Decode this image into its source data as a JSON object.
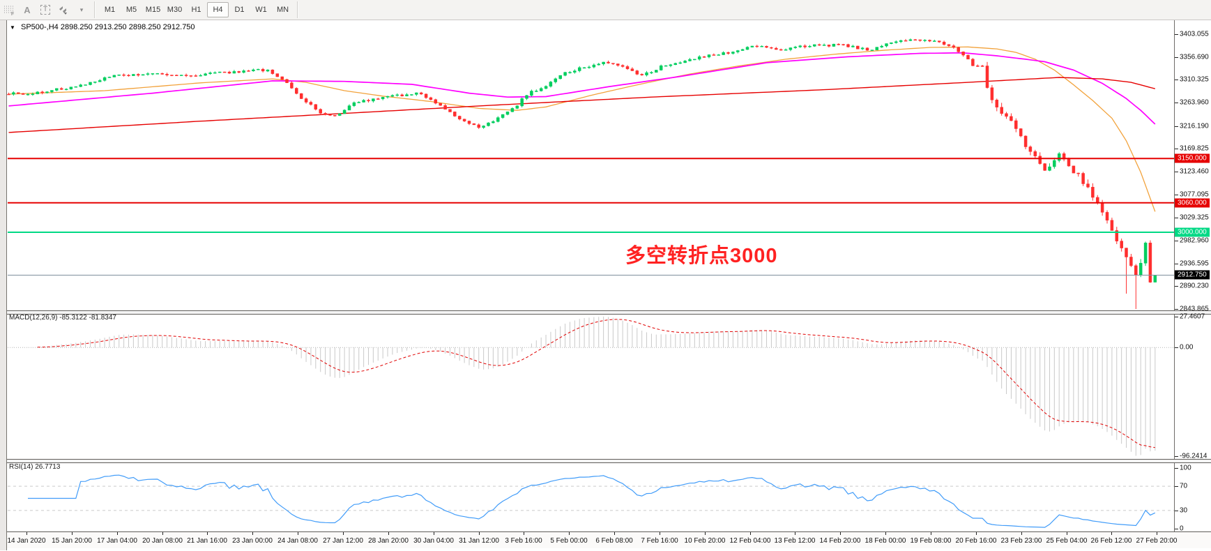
{
  "toolbar": {
    "icons": [
      {
        "name": "grid-f-icon"
      },
      {
        "name": "letter-a-icon"
      },
      {
        "name": "text-select-icon",
        "glyph": "T"
      },
      {
        "name": "cycles-icon"
      },
      {
        "name": "dropdown-caret-icon",
        "glyph": "▾"
      }
    ],
    "timeframes": [
      "M1",
      "M5",
      "M15",
      "M30",
      "H1",
      "H4",
      "D1",
      "W1",
      "MN"
    ],
    "active_timeframe": "H4"
  },
  "chart": {
    "title_symbol": "SP500-,H4",
    "title_ohlc": "2898.250 2913.250 2898.250 2912.750",
    "dropdown_glyph": "▼",
    "annotation": "多空转折点3000"
  },
  "chart_data": {
    "type": "candlestick",
    "symbol": "SP500-",
    "timeframe": "H4",
    "last_bar": {
      "open": 2898.25,
      "high": 2913.25,
      "low": 2898.25,
      "close": 2912.75
    },
    "price_axis": {
      "range_top": 3431.4,
      "range_bottom": 2841.0,
      "ticks": [
        3403.055,
        3356.69,
        3310.325,
        3263.96,
        3216.19,
        3169.825,
        3123.46,
        3077.095,
        3029.325,
        2982.96,
        2936.595,
        2890.23,
        2843.865
      ]
    },
    "hlines": [
      {
        "value": 3150.0,
        "label": "3150.000",
        "color": "#e60000",
        "width": 2
      },
      {
        "value": 3060.0,
        "label": "3060.000",
        "color": "#e60000",
        "width": 2
      },
      {
        "value": 3000.0,
        "label": "3000.000",
        "color": "#00d985",
        "width": 2
      }
    ],
    "current_price": {
      "value": 2912.75,
      "label": "2912.750",
      "line_color": "#7e8e9c",
      "badge_bg": "#000000"
    },
    "candles": {
      "count": 240,
      "up_color": "#00ce5e",
      "down_color": "#ff2e2e",
      "close_anchors": [
        [
          0,
          3283
        ],
        [
          4,
          3280
        ],
        [
          7,
          3286
        ],
        [
          14,
          3296
        ],
        [
          22,
          3318
        ],
        [
          29,
          3322
        ],
        [
          36,
          3318
        ],
        [
          43,
          3323
        ],
        [
          50,
          3328
        ],
        [
          54,
          3331
        ],
        [
          58,
          3302
        ],
        [
          61,
          3272
        ],
        [
          65,
          3243
        ],
        [
          68,
          3236
        ],
        [
          72,
          3264
        ],
        [
          79,
          3276
        ],
        [
          86,
          3283
        ],
        [
          90,
          3256
        ],
        [
          94,
          3230
        ],
        [
          98,
          3214
        ],
        [
          101,
          3227
        ],
        [
          106,
          3259
        ],
        [
          108,
          3280
        ],
        [
          113,
          3304
        ],
        [
          115,
          3320
        ],
        [
          120,
          3336
        ],
        [
          124,
          3347
        ],
        [
          130,
          3330
        ],
        [
          132,
          3318
        ],
        [
          137,
          3341
        ],
        [
          144,
          3356
        ],
        [
          151,
          3368
        ],
        [
          156,
          3379
        ],
        [
          161,
          3372
        ],
        [
          166,
          3379
        ],
        [
          173,
          3381
        ],
        [
          180,
          3371
        ],
        [
          184,
          3386
        ],
        [
          188,
          3392
        ],
        [
          192,
          3390
        ],
        [
          194,
          3385
        ],
        [
          196,
          3380
        ],
        [
          199,
          3362
        ],
        [
          201,
          3341
        ],
        [
          203,
          3338
        ],
        [
          204,
          3290
        ],
        [
          206,
          3256
        ],
        [
          209,
          3225
        ],
        [
          212,
          3178
        ],
        [
          214,
          3150
        ],
        [
          216,
          3128
        ],
        [
          218,
          3142
        ],
        [
          219,
          3160
        ],
        [
          220,
          3146
        ],
        [
          222,
          3120
        ],
        [
          223,
          3116
        ],
        [
          224,
          3100
        ],
        [
          227,
          3062
        ],
        [
          229,
          3020
        ],
        [
          231,
          2985
        ],
        [
          233,
          2948
        ],
        [
          235,
          2915
        ],
        [
          236,
          2938
        ],
        [
          237,
          2978
        ],
        [
          238,
          2898.25
        ],
        [
          239,
          2912.75
        ]
      ]
    },
    "moving_averages": [
      {
        "name": "fast-ma",
        "color": "#f2a23b",
        "width": 1.3,
        "points": [
          [
            0,
            3281
          ],
          [
            20,
            3288
          ],
          [
            40,
            3304
          ],
          [
            55,
            3312
          ],
          [
            62,
            3305
          ],
          [
            70,
            3288
          ],
          [
            78,
            3277
          ],
          [
            88,
            3266
          ],
          [
            98,
            3252
          ],
          [
            106,
            3248
          ],
          [
            112,
            3255
          ],
          [
            122,
            3280
          ],
          [
            132,
            3302
          ],
          [
            142,
            3322
          ],
          [
            152,
            3338
          ],
          [
            162,
            3352
          ],
          [
            172,
            3362
          ],
          [
            182,
            3370
          ],
          [
            192,
            3376
          ],
          [
            200,
            3377
          ],
          [
            206,
            3373
          ],
          [
            210,
            3366
          ],
          [
            214,
            3352
          ],
          [
            218,
            3330
          ],
          [
            222,
            3300
          ],
          [
            226,
            3268
          ],
          [
            230,
            3232
          ],
          [
            233,
            3186
          ],
          [
            236,
            3122
          ],
          [
            239,
            3042
          ]
        ]
      },
      {
        "name": "medium-ma",
        "color": "#ff00ff",
        "width": 1.7,
        "points": [
          [
            0,
            3257
          ],
          [
            30,
            3283
          ],
          [
            55,
            3308
          ],
          [
            70,
            3307
          ],
          [
            84,
            3301
          ],
          [
            96,
            3283
          ],
          [
            104,
            3275
          ],
          [
            112,
            3276
          ],
          [
            125,
            3296
          ],
          [
            140,
            3317
          ],
          [
            158,
            3345
          ],
          [
            175,
            3357
          ],
          [
            190,
            3364
          ],
          [
            199,
            3365
          ],
          [
            206,
            3359
          ],
          [
            212,
            3352
          ],
          [
            216,
            3347
          ],
          [
            222,
            3330
          ],
          [
            228,
            3303
          ],
          [
            233,
            3272
          ],
          [
            236,
            3248
          ],
          [
            239,
            3220
          ]
        ]
      },
      {
        "name": "slow-ma",
        "color": "#e60000",
        "width": 1.4,
        "points": [
          [
            0,
            3203
          ],
          [
            40,
            3226
          ],
          [
            74,
            3244
          ],
          [
            100,
            3258
          ],
          [
            134,
            3275
          ],
          [
            170,
            3290
          ],
          [
            200,
            3305
          ],
          [
            219,
            3315
          ],
          [
            228,
            3312
          ],
          [
            234,
            3305
          ],
          [
            239,
            3292
          ]
        ]
      }
    ],
    "macd": {
      "label": "MACD(12,26,9) -85.3122 -81.8347",
      "params": [
        12,
        26,
        9
      ],
      "main_value": -85.3122,
      "signal_value": -81.8347,
      "axis": [
        {
          "v": 27.4607,
          "label": "27.4607"
        },
        {
          "v": 0,
          "label": "0.00"
        },
        {
          "v": -96.2414,
          "label": "-96.2414"
        }
      ],
      "range_top": 30.5,
      "range_bottom": -99.0,
      "hist_color": "#c9c9c9",
      "signal_color": "#e00000"
    },
    "rsi": {
      "label": "RSI(14) 26.7713",
      "period": 14,
      "value": 26.7713,
      "axis": [
        {
          "v": 100,
          "label": "100"
        },
        {
          "v": 70,
          "label": "70"
        },
        {
          "v": 30,
          "label": "30"
        },
        {
          "v": 0,
          "label": "0"
        }
      ],
      "levels": [
        70,
        30
      ],
      "range_top": 110.3,
      "range_bottom": -4.6,
      "line_color": "#419cf9",
      "level_color": "#c9c9c9"
    },
    "time_axis": [
      "14 Jan 2020",
      "15 Jan 20:00",
      "17 Jan 04:00",
      "20 Jan 08:00",
      "21 Jan 16:00",
      "23 Jan 00:00",
      "24 Jan 08:00",
      "27 Jan 12:00",
      "28 Jan 20:00",
      "30 Jan 04:00",
      "31 Jan 12:00",
      "3 Feb 16:00",
      "5 Feb 00:00",
      "6 Feb 08:00",
      "7 Feb 16:00",
      "10 Feb 20:00",
      "12 Feb 04:00",
      "13 Feb 12:00",
      "14 Feb 20:00",
      "18 Feb 00:00",
      "19 Feb 08:00",
      "20 Feb 16:00",
      "23 Feb 23:00",
      "25 Feb 04:00",
      "26 Feb 12:00",
      "27 Feb 20:00"
    ]
  }
}
